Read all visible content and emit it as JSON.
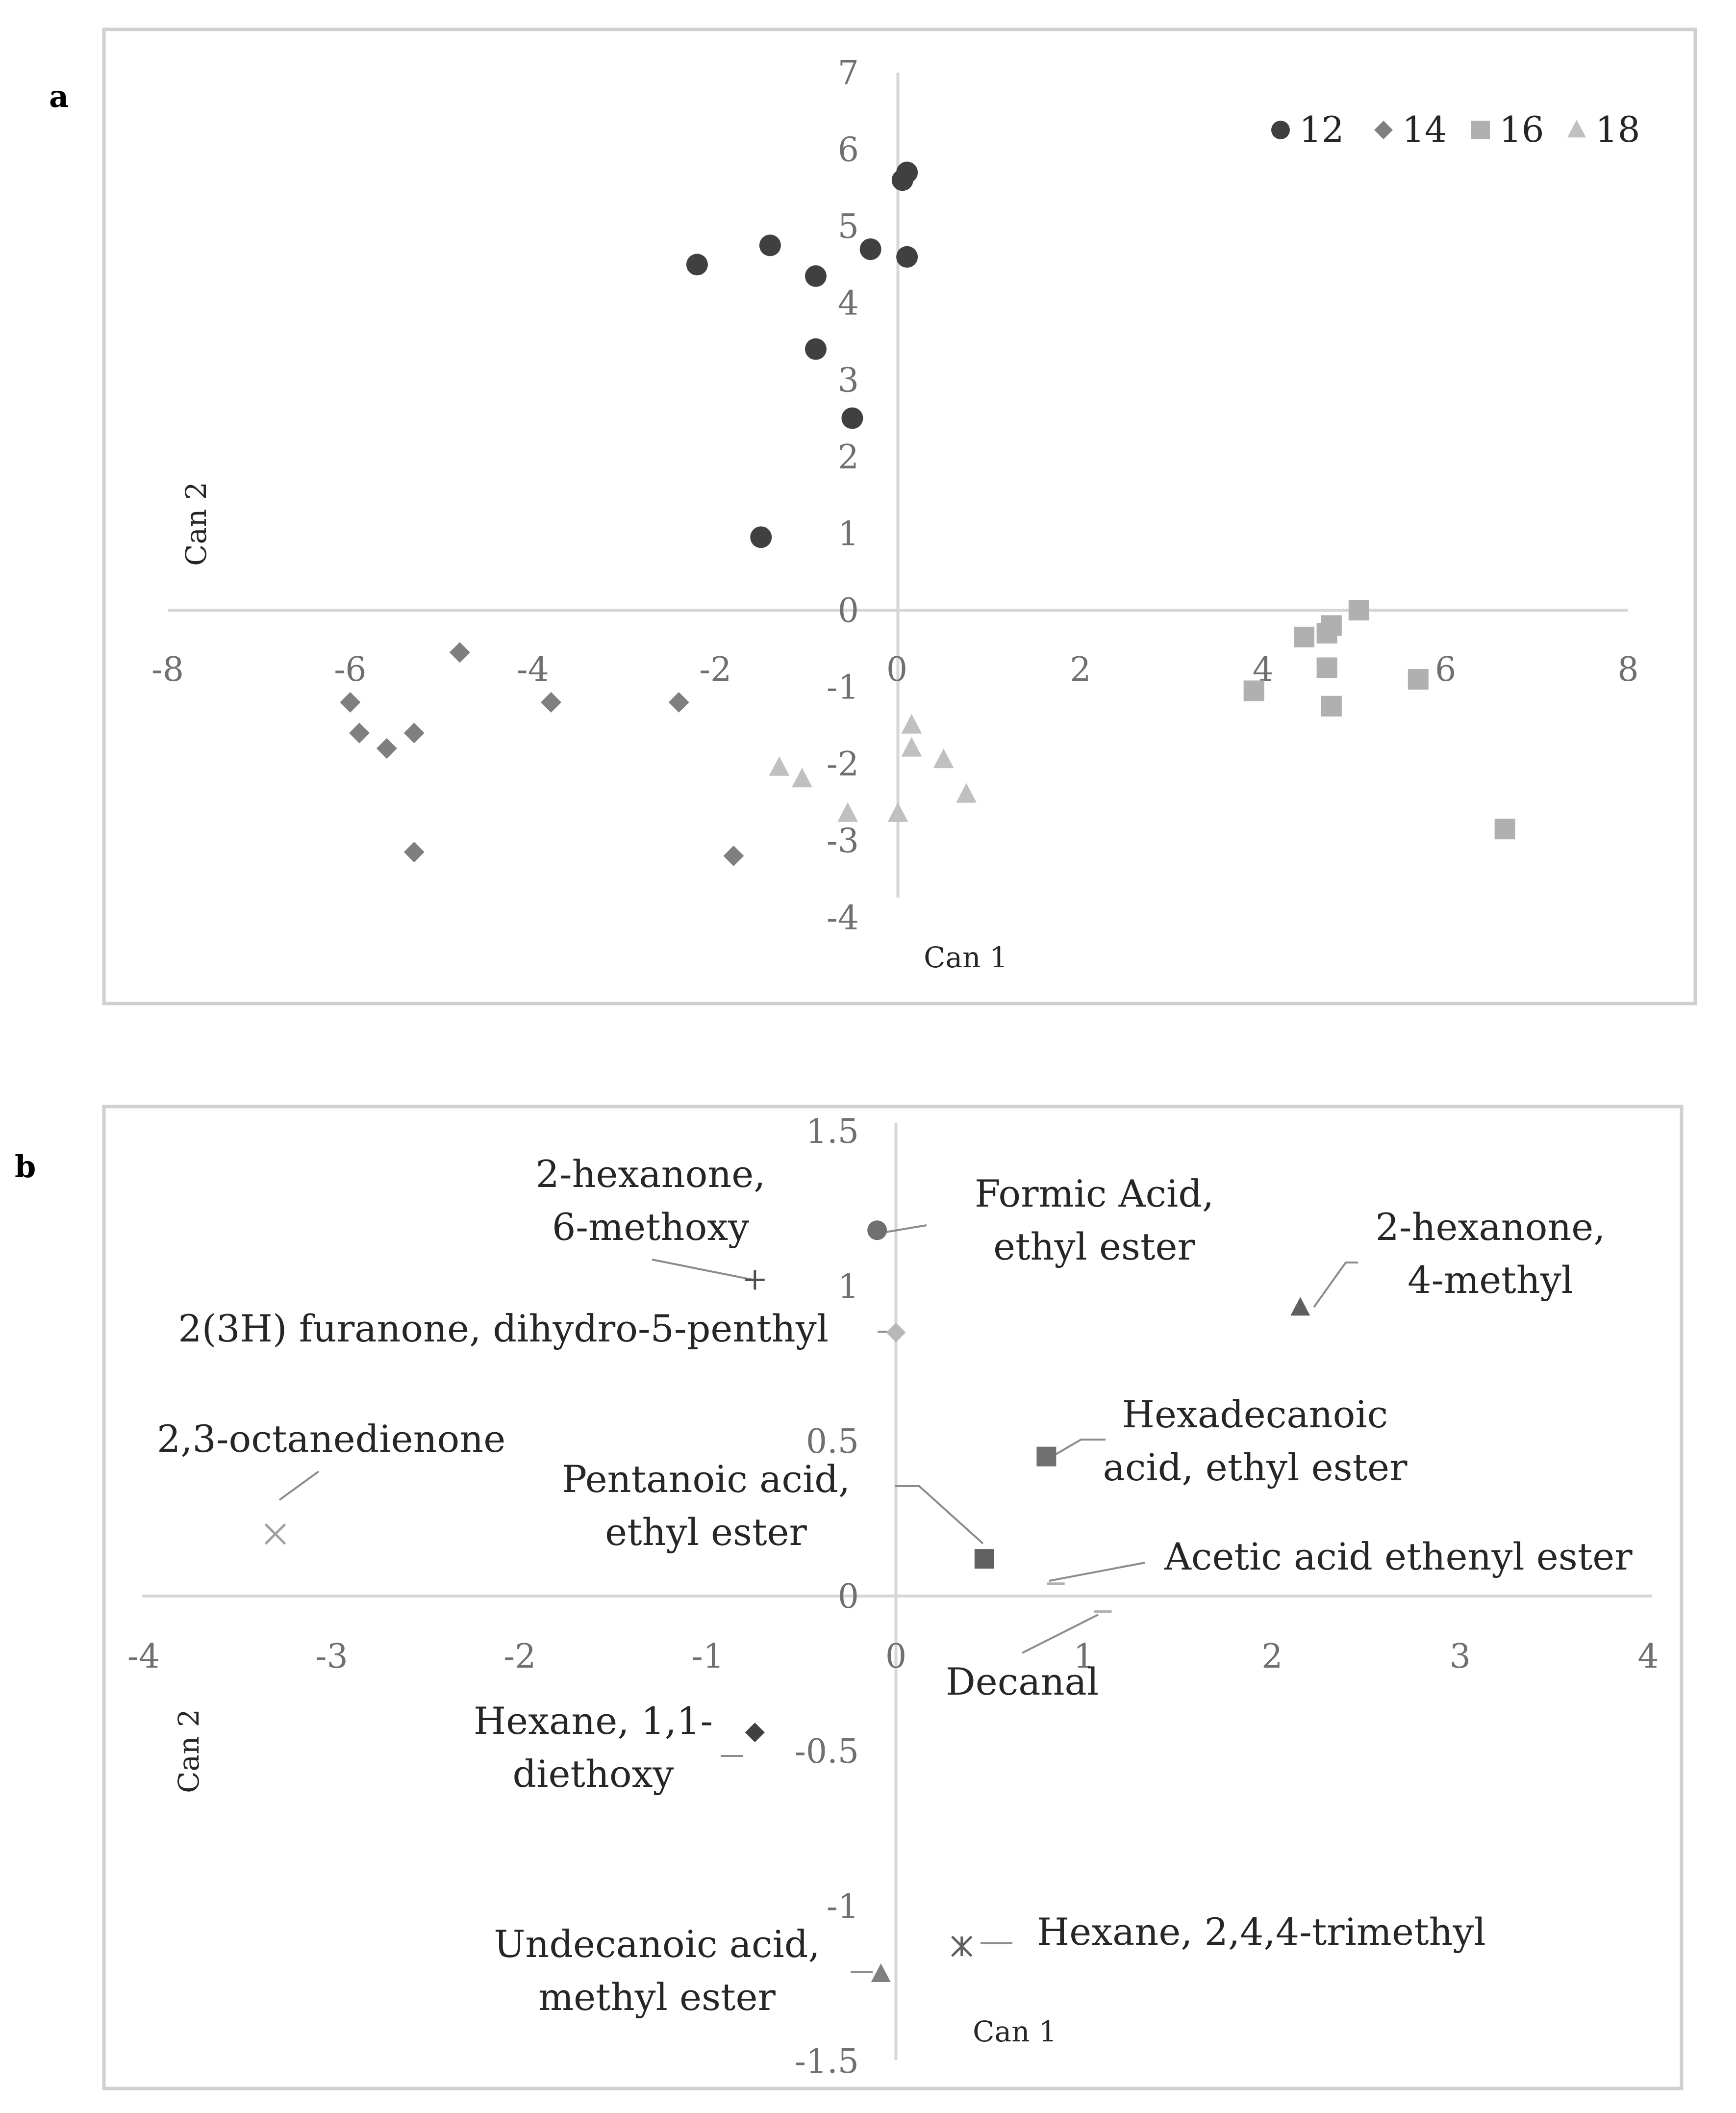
{
  "chart_data": [
    {
      "panel": "a",
      "type": "scatter",
      "title": "",
      "xlabel": "Can 1",
      "ylabel": "Can 2",
      "xlim": [
        -8,
        8
      ],
      "ylim": [
        -4,
        7
      ],
      "xticks": [
        -8,
        -6,
        -4,
        -2,
        0,
        2,
        4,
        6,
        8
      ],
      "yticks": [
        -4,
        -3,
        -2,
        -1,
        0,
        1,
        2,
        3,
        4,
        5,
        6,
        7
      ],
      "grid": false,
      "legend_position": "top-right",
      "series": [
        {
          "name": "12",
          "marker": "circle",
          "color": "#404040",
          "points": [
            [
              0.1,
              5.7
            ],
            [
              0.05,
              5.6
            ],
            [
              0.1,
              4.6
            ],
            [
              -0.3,
              4.7
            ],
            [
              -1.4,
              4.75
            ],
            [
              -2.2,
              4.5
            ],
            [
              -0.9,
              4.35
            ],
            [
              -0.9,
              3.4
            ],
            [
              -0.5,
              2.5
            ],
            [
              -1.5,
              0.95
            ]
          ]
        },
        {
          "name": "14",
          "marker": "diamond",
          "color": "#7f7f7f",
          "points": [
            [
              -4.8,
              -0.55
            ],
            [
              -6.0,
              -1.2
            ],
            [
              -3.8,
              -1.2
            ],
            [
              -2.4,
              -1.2
            ],
            [
              -5.9,
              -1.6
            ],
            [
              -5.3,
              -1.6
            ],
            [
              -5.6,
              -1.8
            ],
            [
              -5.3,
              -3.15
            ],
            [
              -1.8,
              -3.2
            ]
          ]
        },
        {
          "name": "16",
          "marker": "square",
          "color": "#b0b0b0",
          "points": [
            [
              5.05,
              0.0
            ],
            [
              4.75,
              -0.2
            ],
            [
              4.7,
              -0.3
            ],
            [
              4.45,
              -0.35
            ],
            [
              4.7,
              -0.75
            ],
            [
              5.7,
              -0.9
            ],
            [
              3.9,
              -1.05
            ],
            [
              4.75,
              -1.25
            ],
            [
              6.65,
              -2.85
            ]
          ]
        },
        {
          "name": "18",
          "marker": "triangle",
          "color": "#c0c0c0",
          "points": [
            [
              0.15,
              -1.5
            ],
            [
              0.15,
              -1.8
            ],
            [
              0.5,
              -1.95
            ],
            [
              -1.3,
              -2.05
            ],
            [
              -1.05,
              -2.2
            ],
            [
              0.75,
              -2.4
            ],
            [
              -0.55,
              -2.65
            ],
            [
              0.0,
              -2.65
            ]
          ]
        }
      ]
    },
    {
      "panel": "b",
      "type": "scatter",
      "title": "",
      "xlabel": "Can 1",
      "ylabel": "Can 2",
      "xlim": [
        -4,
        4
      ],
      "ylim": [
        -1.5,
        1.5
      ],
      "xticks": [
        -4,
        -3,
        -2,
        -1,
        0,
        1,
        2,
        3,
        4
      ],
      "yticks": [
        -1.5,
        -1,
        -0.5,
        0,
        0.5,
        1,
        1.5
      ],
      "grid": false,
      "points": [
        {
          "label_lines": [
            "2-hexanone,",
            "6-methoxy"
          ],
          "x": -0.75,
          "y": 1.02,
          "marker": "plus",
          "color": "#505050"
        },
        {
          "label_lines": [
            "Formic Acid,",
            "ethyl ester"
          ],
          "x": -0.1,
          "y": 1.18,
          "marker": "circle",
          "color": "#707070"
        },
        {
          "label_lines": [
            "2-hexanone,",
            "4-methyl"
          ],
          "x": 2.15,
          "y": 0.93,
          "marker": "triangle",
          "color": "#606060"
        },
        {
          "label_lines": [
            "2(3H) furanone, dihydro-5-penthyl"
          ],
          "x": 0.0,
          "y": 0.85,
          "marker": "diamond",
          "color": "#b8b8b8"
        },
        {
          "label_lines": [
            "Hexadecanoic",
            "acid, ethyl ester"
          ],
          "x": 0.8,
          "y": 0.45,
          "marker": "square",
          "color": "#707070"
        },
        {
          "label_lines": [
            "2,3-octanedienone"
          ],
          "x": -3.3,
          "y": 0.2,
          "marker": "x",
          "color": "#a0a0a0"
        },
        {
          "label_lines": [
            "Pentanoic acid,",
            "ethyl ester"
          ],
          "x": 0.47,
          "y": 0.12,
          "marker": "square",
          "color": "#606060"
        },
        {
          "label_lines": [
            "Acetic acid ethenyl ester"
          ],
          "x": 0.85,
          "y": 0.04,
          "marker": "dash",
          "color": "#b0b0b0"
        },
        {
          "label_lines": [
            "Decanal"
          ],
          "x": 1.1,
          "y": -0.05,
          "marker": "dash",
          "color": "#b0b0b0"
        },
        {
          "label_lines": [
            "Hexane, 1,1-",
            "diethoxy"
          ],
          "x": -0.75,
          "y": -0.44,
          "marker": "diamond",
          "color": "#404040"
        },
        {
          "label_lines": [
            "Hexane, 2,4,4-trimethyl"
          ],
          "x": 0.35,
          "y": -1.13,
          "marker": "asterisk",
          "color": "#606060"
        },
        {
          "label_lines": [
            "Undecanoic acid,",
            "methyl ester"
          ],
          "x": -0.08,
          "y": -1.22,
          "marker": "triangle",
          "color": "#808080"
        }
      ]
    }
  ],
  "panel_labels": {
    "a": "a",
    "b": "b"
  },
  "colors": {
    "frame": "#d0d0d0",
    "axis": "#d6d6d6",
    "tick_text": "#707070",
    "label_text": "#262626"
  }
}
